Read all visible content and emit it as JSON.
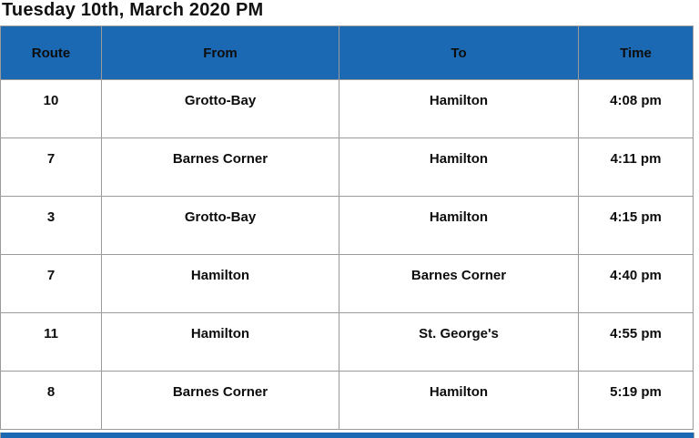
{
  "title": "Tuesday 10th, March 2020 PM",
  "colors": {
    "header_bg": "#1b69b3",
    "grid_border": "#9b9b9b",
    "text": "#0d0d0d"
  },
  "table": {
    "columns": [
      {
        "key": "route",
        "label": "Route"
      },
      {
        "key": "from",
        "label": "From"
      },
      {
        "key": "to",
        "label": "To"
      },
      {
        "key": "time",
        "label": "Time"
      }
    ],
    "rows": [
      {
        "route": "10",
        "from": "Grotto-Bay",
        "to": "Hamilton",
        "time": "4:08 pm"
      },
      {
        "route": "7",
        "from": "Barnes Corner",
        "to": "Hamilton",
        "time": "4:11 pm"
      },
      {
        "route": "3",
        "from": "Grotto-Bay",
        "to": "Hamilton",
        "time": "4:15 pm"
      },
      {
        "route": "7",
        "from": "Hamilton",
        "to": "Barnes Corner",
        "time": "4:40 pm"
      },
      {
        "route": "11",
        "from": "Hamilton",
        "to": "St. George's",
        "time": "4:55 pm"
      },
      {
        "route": "8",
        "from": "Barnes Corner",
        "to": "Hamilton",
        "time": "5:19 pm"
      }
    ]
  }
}
